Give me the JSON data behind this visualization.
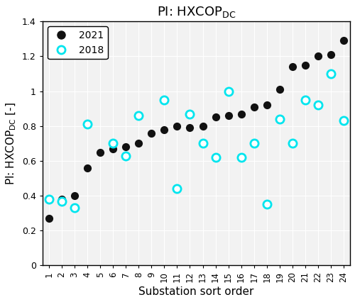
{
  "title": "PI: HXCOP",
  "title_sub": "DC",
  "xlabel": "Substation sort order",
  "ylabel_main": "PI: HXCOP",
  "ylabel_sub": "DC",
  "ylabel_end": " [-]",
  "x2021": [
    1,
    2,
    3,
    4,
    5,
    6,
    7,
    8,
    9,
    10,
    11,
    12,
    13,
    14,
    15,
    16,
    17,
    18,
    19,
    20,
    21,
    22,
    23,
    24
  ],
  "y2021": [
    0.27,
    0.38,
    0.4,
    0.56,
    0.65,
    0.67,
    0.68,
    0.7,
    0.76,
    0.78,
    0.8,
    0.79,
    0.8,
    0.85,
    0.86,
    0.87,
    0.91,
    0.92,
    1.01,
    1.14,
    1.15,
    1.2,
    1.21,
    1.29
  ],
  "x2018": [
    1,
    2,
    3,
    4,
    6,
    7,
    8,
    10,
    11,
    12,
    13,
    14,
    15,
    16,
    17,
    18,
    19,
    20,
    21,
    22,
    23,
    24
  ],
  "y2018": [
    0.38,
    0.37,
    0.33,
    0.81,
    0.7,
    0.63,
    0.86,
    0.95,
    0.44,
    0.87,
    0.7,
    0.62,
    1.0,
    0.62,
    0.7,
    0.35,
    0.84,
    0.7,
    0.95,
    0.92,
    1.1,
    0.83
  ],
  "color2021": "#111111",
  "color2018": "#00E5EE",
  "ylim": [
    0,
    1.4
  ],
  "xlim": [
    0.5,
    24.5
  ],
  "xticks": [
    1,
    2,
    3,
    4,
    5,
    6,
    7,
    8,
    9,
    10,
    11,
    12,
    13,
    14,
    15,
    16,
    17,
    18,
    19,
    20,
    21,
    22,
    23,
    24
  ],
  "yticks": [
    0,
    0.2,
    0.4,
    0.6,
    0.8,
    1.0,
    1.2,
    1.4
  ],
  "marker_size": 65,
  "legend_labels": [
    "2021",
    "2018"
  ],
  "background_color": "#f2f2f2",
  "grid_color": "#ffffff"
}
